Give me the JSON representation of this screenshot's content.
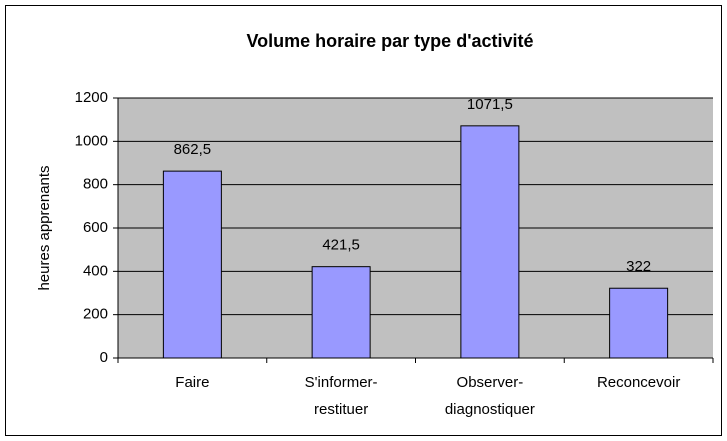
{
  "chart_data": {
    "type": "bar",
    "title": "Volume horaire par type d'activité",
    "y_label": "heures apprenants",
    "categories": [
      "Faire",
      "S'informer-restituer",
      "Observer-diagnostiquer",
      "Reconcevoir"
    ],
    "values": [
      862.5,
      421.5,
      1071.5,
      322
    ],
    "value_labels": [
      "862,5",
      "421,5",
      "1071,5",
      "322"
    ],
    "color": "#9999ff",
    "ylim": [
      0,
      1200
    ],
    "yticks": [
      0,
      200,
      400,
      600,
      800,
      1000,
      1200
    ],
    "grid": true
  }
}
